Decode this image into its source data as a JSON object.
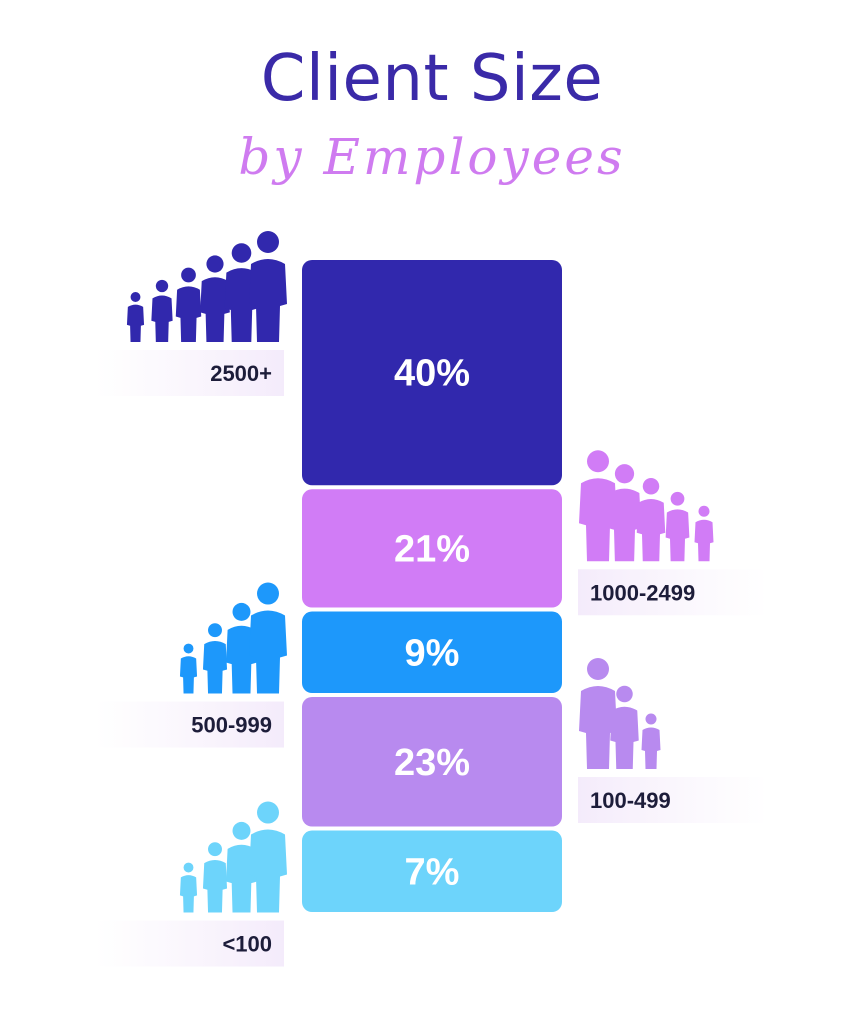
{
  "title": "Client Size",
  "subtitle": "by Employees",
  "chart_data": {
    "type": "bar",
    "title": "Client Size",
    "subtitle": "by Employees",
    "stacked": true,
    "categories": [
      "2500+",
      "1000-2499",
      "500-999",
      "100-499",
      "<100"
    ],
    "values": [
      40,
      21,
      9,
      23,
      7
    ],
    "value_labels": [
      "40%",
      "21%",
      "9%",
      "23%",
      "7%"
    ],
    "label_sides": [
      "left",
      "right",
      "left",
      "right",
      "left"
    ],
    "icon_counts": [
      6,
      5,
      4,
      3,
      4
    ],
    "colors": [
      "#3128ad",
      "#d17cf6",
      "#1d98fb",
      "#b88aef",
      "#6dd4fb"
    ],
    "icon": "people-group-icon",
    "xlabel": "",
    "ylabel": ""
  }
}
